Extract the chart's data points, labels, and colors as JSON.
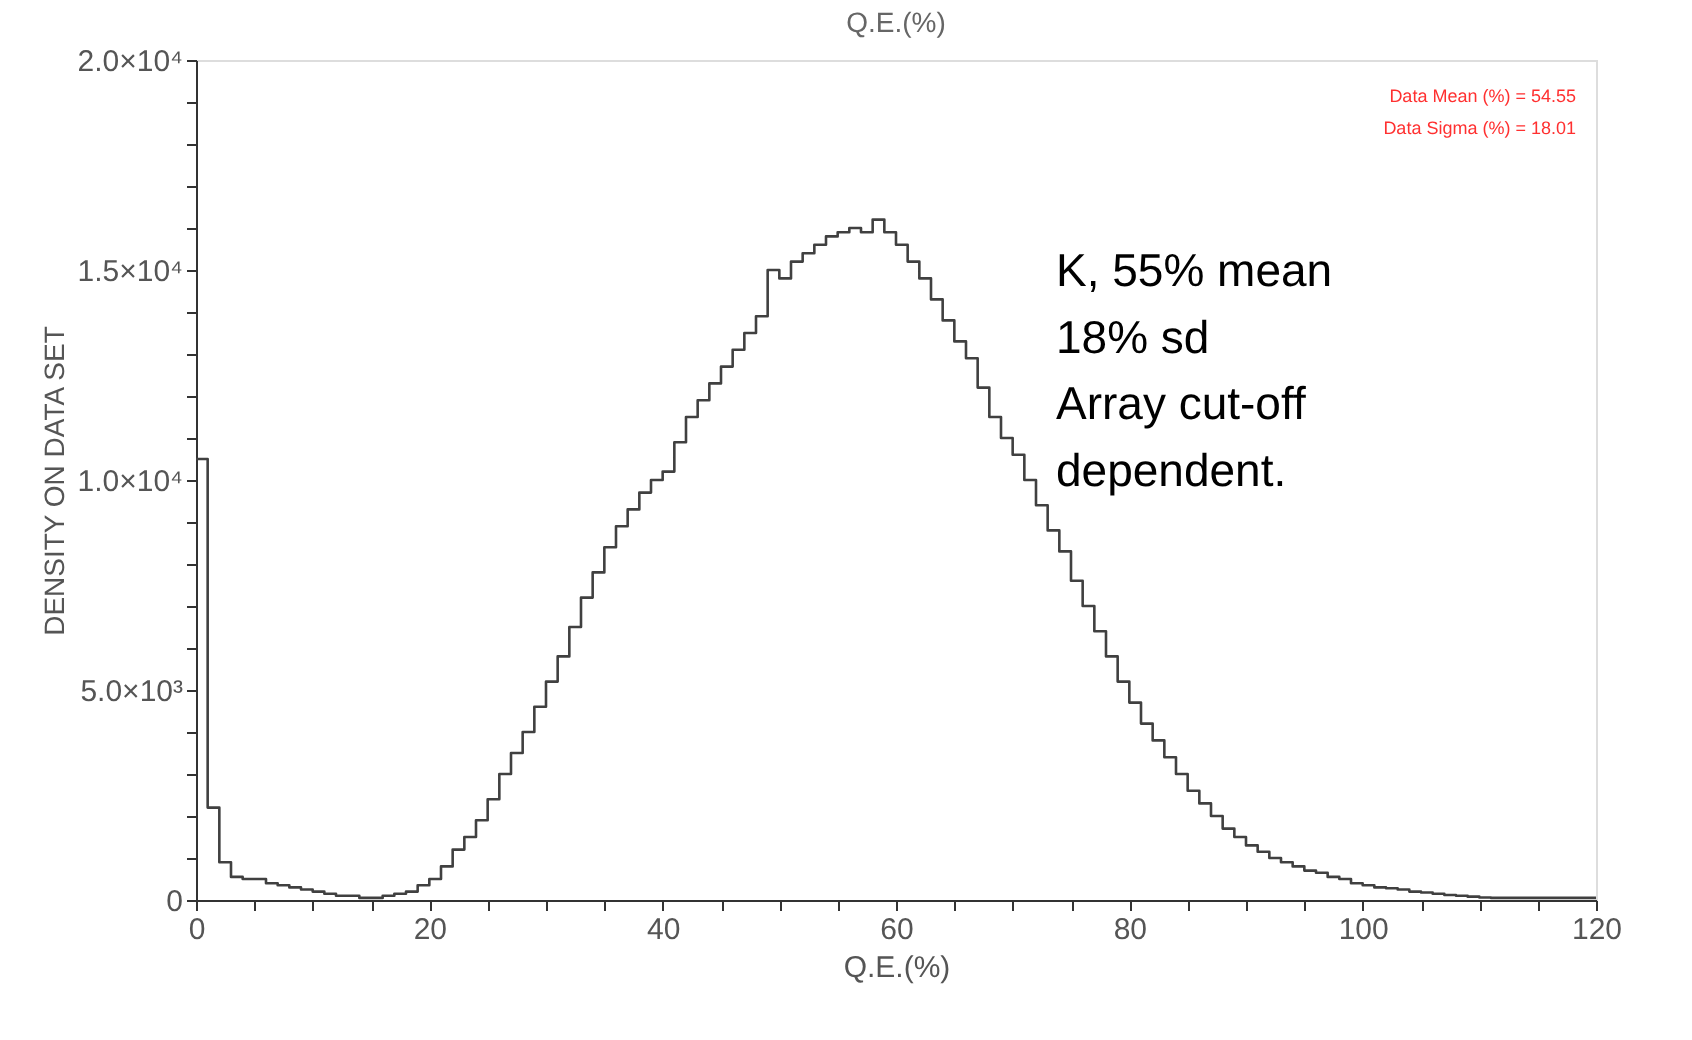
{
  "chart_data": {
    "type": "histogram",
    "title": "Q.E.(%)",
    "xlabel": "Q.E.(%)",
    "ylabel": "DENSITY ON DATA SET",
    "bins": [
      0,
      1,
      2,
      3,
      4,
      5,
      6,
      7,
      8,
      9,
      10,
      11,
      12,
      13,
      14,
      15,
      16,
      17,
      18,
      19,
      20,
      21,
      22,
      23,
      24,
      25,
      26,
      27,
      28,
      29,
      30,
      31,
      32,
      33,
      34,
      35,
      36,
      37,
      38,
      39,
      40,
      41,
      42,
      43,
      44,
      45,
      46,
      47,
      48,
      49,
      50,
      51,
      52,
      53,
      54,
      55,
      56,
      57,
      58,
      59,
      60,
      61,
      62,
      63,
      64,
      65,
      66,
      67,
      68,
      69,
      70,
      71,
      72,
      73,
      74,
      75,
      76,
      77,
      78,
      79,
      80,
      81,
      82,
      83,
      84,
      85,
      86,
      87,
      88,
      89,
      90,
      91,
      92,
      93,
      94,
      95,
      96,
      97,
      98,
      99,
      100,
      101,
      102,
      103,
      104,
      105,
      106,
      107,
      108,
      109,
      110,
      111,
      112,
      113,
      114,
      115,
      116,
      117,
      118,
      119,
      120
    ],
    "values": [
      10500,
      2200,
      900,
      550,
      500,
      500,
      400,
      350,
      300,
      250,
      200,
      150,
      100,
      100,
      50,
      50,
      100,
      150,
      200,
      350,
      500,
      800,
      1200,
      1500,
      1900,
      2400,
      3000,
      3500,
      4000,
      4600,
      5200,
      5800,
      6500,
      7200,
      7800,
      8400,
      8900,
      9300,
      9700,
      10000,
      10200,
      10900,
      11500,
      11900,
      12300,
      12700,
      13100,
      13500,
      13900,
      15000,
      14800,
      15200,
      15400,
      15600,
      15800,
      15900,
      16000,
      15900,
      16200,
      15900,
      15600,
      15200,
      14800,
      14300,
      13800,
      13300,
      12900,
      12200,
      11500,
      11000,
      10600,
      10000,
      9400,
      8800,
      8300,
      7600,
      7000,
      6400,
      5800,
      5200,
      4700,
      4200,
      3800,
      3400,
      3000,
      2600,
      2300,
      2000,
      1700,
      1500,
      1300,
      1150,
      1000,
      900,
      800,
      700,
      650,
      550,
      500,
      400,
      350,
      300,
      280,
      250,
      200,
      180,
      150,
      120,
      100,
      80,
      60,
      50,
      50,
      50,
      50,
      50,
      50,
      50,
      50,
      50
    ],
    "color": "#404040",
    "xlim": [
      0,
      120
    ],
    "xticks": [
      0,
      {
        "value": 5,
        "label": null
      },
      {
        "value": 10,
        "label": null
      },
      {
        "value": 15,
        "label": null
      },
      20,
      {
        "value": 25,
        "label": null
      },
      {
        "value": 30,
        "label": null
      },
      {
        "value": 35,
        "label": null
      },
      40,
      {
        "value": 45,
        "label": null
      },
      {
        "value": 50,
        "label": null
      },
      {
        "value": 55,
        "label": null
      },
      60,
      {
        "value": 65,
        "label": null
      },
      {
        "value": 70,
        "label": null
      },
      {
        "value": 75,
        "label": null
      },
      80,
      {
        "value": 85,
        "label": null
      },
      {
        "value": 90,
        "label": null
      },
      {
        "value": 95,
        "label": null
      },
      100,
      {
        "value": 105,
        "label": null
      },
      {
        "value": 110,
        "label": null
      },
      {
        "value": 115,
        "label": null
      },
      120
    ],
    "ylim": [
      0,
      20000
    ],
    "yticks": [
      0,
      {
        "value": 1000,
        "label": null
      },
      {
        "value": 2000,
        "label": null
      },
      {
        "value": 3000,
        "label": null
      },
      {
        "value": 4000,
        "label": null
      },
      {
        "value": 5000,
        "label": "5.0×10³"
      },
      {
        "value": 6000,
        "label": null
      },
      {
        "value": 7000,
        "label": null
      },
      {
        "value": 8000,
        "label": null
      },
      {
        "value": 9000,
        "label": null
      },
      {
        "value": 10000,
        "label": "1.0×10⁴"
      },
      {
        "value": 11000,
        "label": null
      },
      {
        "value": 12000,
        "label": null
      },
      {
        "value": 13000,
        "label": null
      },
      {
        "value": 14000,
        "label": null
      },
      {
        "value": 15000,
        "label": "1.5×10⁴"
      },
      {
        "value": 16000,
        "label": null
      },
      {
        "value": 17000,
        "label": null
      },
      {
        "value": 18000,
        "label": null
      },
      {
        "value": 19000,
        "label": null
      },
      {
        "value": 20000,
        "label": "2.0×10⁴"
      }
    ],
    "grid": false,
    "annotations": [
      "Data Mean (%)   =   54.55",
      "Data Sigma (%)   =   18.01",
      "K, 55% mean\n18% sd\nArray cut-off\ndependent."
    ]
  }
}
